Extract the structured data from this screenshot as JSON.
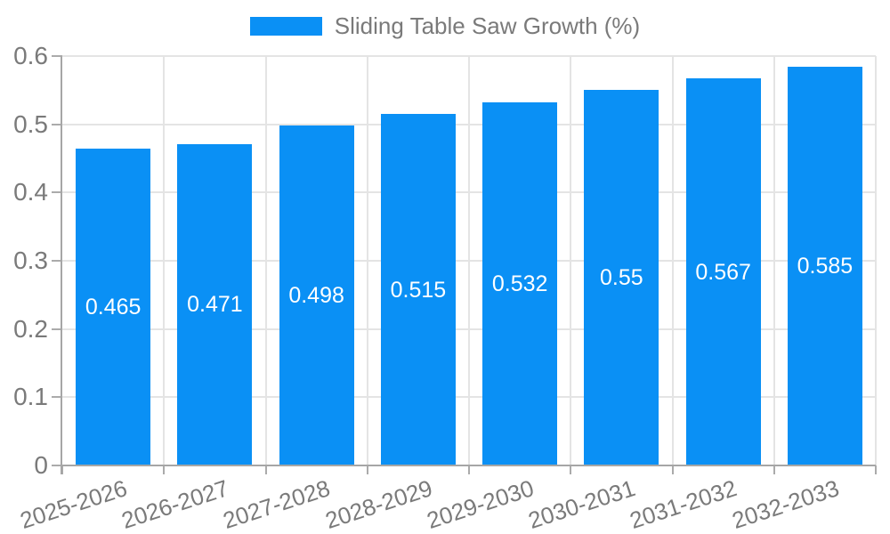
{
  "chart_data": {
    "type": "bar",
    "title": "Sliding Table Saw Growth (%)",
    "categories": [
      "2025-2026",
      "2026-2027",
      "2027-2028",
      "2028-2029",
      "2029-2030",
      "2030-2031",
      "2031-2032",
      "2032-2033"
    ],
    "values": [
      0.465,
      0.471,
      0.498,
      0.515,
      0.532,
      0.55,
      0.567,
      0.585
    ],
    "value_labels": [
      "0.465",
      "0.471",
      "0.498",
      "0.515",
      "0.532",
      "0.55",
      "0.567",
      "0.585"
    ],
    "yticks": [
      "0",
      "0.1",
      "0.2",
      "0.3",
      "0.4",
      "0.5",
      "0.6"
    ],
    "ylim": [
      0,
      0.6
    ],
    "xlabel": "",
    "ylabel": "",
    "grid": true,
    "legend_position": "top-center",
    "colors": {
      "bar": "#0a90f5",
      "value_label": "#ffffff",
      "axis_line": "#a6a6a6",
      "tick_mark": "#ababab",
      "tick_label": "#7a7a7a",
      "gridline": "#e4e4e4",
      "background": "#ffffff"
    }
  }
}
